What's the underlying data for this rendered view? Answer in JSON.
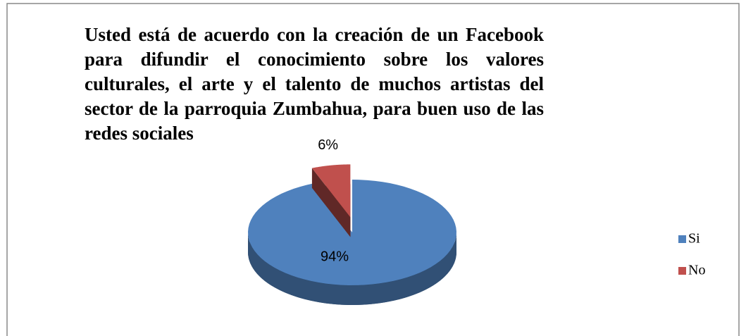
{
  "chart_data": {
    "type": "pie",
    "title": "Usted está de acuerdo con la creación de un Facebook para difundir el conocimiento sobre los valores culturales, el arte y el talento de muchos artistas del sector de la parroquia Zumbahua, para buen uso de las redes sociales",
    "categories": [
      "Si",
      "No"
    ],
    "values": [
      94,
      6
    ],
    "value_labels": [
      "94%",
      "6%"
    ],
    "colors": [
      "#4f81bd",
      "#c0504d"
    ],
    "legend": "right"
  }
}
